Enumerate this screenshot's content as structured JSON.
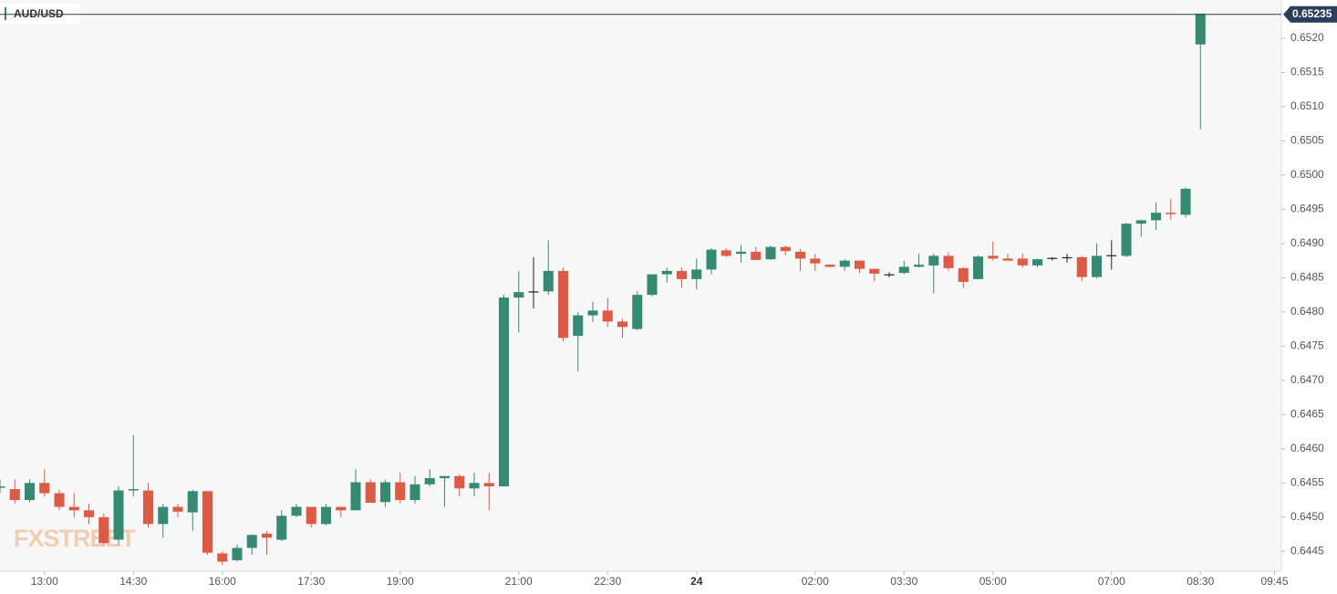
{
  "chart_data": {
    "type": "candlestick",
    "title": "AUD/USD",
    "watermark": "FXSTREET",
    "x": [
      -0.75,
      -0.5,
      -0.25,
      0,
      0.25,
      0.5,
      0.75,
      1,
      1.25,
      1.5,
      1.75,
      2,
      2.25,
      2.5,
      2.75,
      3,
      3.25,
      3.5,
      3.75,
      4,
      4.25,
      4.5,
      4.75,
      5,
      5.25,
      5.5,
      5.75,
      6,
      6.25,
      6.5,
      6.75,
      7,
      7.25,
      7.5,
      7.75,
      8,
      8.25,
      8.5,
      8.75,
      9,
      9.25,
      9.5,
      9.75,
      10,
      10.25,
      10.5,
      10.75,
      11,
      11.25,
      11.5,
      11.75,
      12,
      12.25,
      12.5,
      12.75,
      13,
      13.25,
      13.5,
      13.75,
      14,
      14.25,
      14.5,
      14.75,
      15,
      15.25,
      15.5,
      15.75,
      16,
      16.25,
      16.5,
      16.75,
      17,
      17.25,
      17.5,
      17.75,
      18,
      18.25,
      18.5,
      18.75,
      19,
      19.25,
      19.5
    ],
    "open": [
      0.64543,
      0.64541,
      0.64525,
      0.6455,
      0.64535,
      0.64515,
      0.6451,
      0.645,
      0.64467,
      0.64539,
      0.64539,
      0.6449,
      0.64515,
      0.64507,
      0.64538,
      0.64447,
      0.64437,
      0.64455,
      0.64476,
      0.64467,
      0.64502,
      0.64515,
      0.6449,
      0.64515,
      0.6451,
      0.64551,
      0.64522,
      0.64551,
      0.64525,
      0.64548,
      0.64557,
      0.6456,
      0.64542,
      0.6455,
      0.64545,
      0.64821,
      0.6483,
      0.6483,
      0.6486,
      0.64765,
      0.64795,
      0.64802,
      0.64786,
      0.64775,
      0.64825,
      0.64855,
      0.6486,
      0.64848,
      0.64862,
      0.6489,
      0.64885,
      0.64888,
      0.64877,
      0.64895,
      0.64888,
      0.64878,
      0.64869,
      0.64866,
      0.64875,
      0.64863,
      0.64855,
      0.64857,
      0.64866,
      0.64868,
      0.64882,
      0.64864,
      0.64848,
      0.64882,
      0.64878,
      0.64878,
      0.64868,
      0.64879,
      0.6488,
      0.6488,
      0.64851,
      0.64883,
      0.64882,
      0.64929,
      0.64934,
      0.64945,
      0.64942,
      0.65191
    ],
    "high": [
      0.64555,
      0.64555,
      0.64555,
      0.6457,
      0.6454,
      0.64535,
      0.6452,
      0.64505,
      0.64545,
      0.6462,
      0.6455,
      0.6452,
      0.6452,
      0.6454,
      0.64538,
      0.6445,
      0.6446,
      0.64475,
      0.6448,
      0.6451,
      0.6452,
      0.64515,
      0.6452,
      0.64515,
      0.6457,
      0.64555,
      0.64555,
      0.64565,
      0.6456,
      0.6457,
      0.6456,
      0.64563,
      0.64565,
      0.64565,
      0.64825,
      0.6486,
      0.6488,
      0.64905,
      0.64865,
      0.648,
      0.64815,
      0.6482,
      0.6479,
      0.6483,
      0.64855,
      0.64865,
      0.64865,
      0.64878,
      0.64893,
      0.64893,
      0.64898,
      0.64895,
      0.64897,
      0.64897,
      0.64892,
      0.64885,
      0.6487,
      0.64877,
      0.64875,
      0.64863,
      0.64858,
      0.64875,
      0.64885,
      0.64885,
      0.64887,
      0.64866,
      0.64883,
      0.64903,
      0.64885,
      0.64885,
      0.64878,
      0.6488,
      0.64885,
      0.64882,
      0.649,
      0.64905,
      0.6493,
      0.64935,
      0.6496,
      0.64965,
      0.64982,
      0.65236
    ],
    "low": [
      0.64535,
      0.6452,
      0.64522,
      0.6453,
      0.6451,
      0.645,
      0.6449,
      0.6446,
      0.6446,
      0.6453,
      0.64485,
      0.6447,
      0.645,
      0.6448,
      0.64445,
      0.6443,
      0.64435,
      0.64445,
      0.64445,
      0.64465,
      0.645,
      0.64485,
      0.64488,
      0.645,
      0.6451,
      0.64521,
      0.64515,
      0.6452,
      0.6452,
      0.64545,
      0.64515,
      0.6453,
      0.6453,
      0.6451,
      0.64545,
      0.6477,
      0.64805,
      0.64825,
      0.64757,
      0.64713,
      0.64785,
      0.64778,
      0.64762,
      0.64773,
      0.64823,
      0.64843,
      0.64835,
      0.64833,
      0.64855,
      0.6488,
      0.64872,
      0.64876,
      0.64876,
      0.64883,
      0.6486,
      0.6486,
      0.64865,
      0.6486,
      0.64857,
      0.64845,
      0.64851,
      0.64855,
      0.64865,
      0.64827,
      0.6486,
      0.64835,
      0.64848,
      0.64875,
      0.64875,
      0.64865,
      0.64865,
      0.64875,
      0.64872,
      0.64845,
      0.64849,
      0.64862,
      0.6488,
      0.6491,
      0.6492,
      0.64935,
      0.64938,
      0.65067
    ],
    "close": [
      0.64545,
      0.64525,
      0.6455,
      0.64535,
      0.64515,
      0.6451,
      0.645,
      0.64462,
      0.64539,
      0.64541,
      0.6449,
      0.64515,
      0.64508,
      0.64538,
      0.64448,
      0.64435,
      0.64455,
      0.64474,
      0.6447,
      0.64502,
      0.64515,
      0.6449,
      0.64515,
      0.6451,
      0.64551,
      0.64521,
      0.64551,
      0.64525,
      0.64548,
      0.64557,
      0.6456,
      0.64542,
      0.6455,
      0.64545,
      0.64821,
      0.64829,
      0.6483,
      0.6486,
      0.64762,
      0.64795,
      0.64802,
      0.64786,
      0.64778,
      0.64825,
      0.64855,
      0.6486,
      0.64848,
      0.64862,
      0.64891,
      0.64882,
      0.64888,
      0.64876,
      0.64895,
      0.64889,
      0.64878,
      0.64871,
      0.64866,
      0.64875,
      0.64863,
      0.64856,
      0.64855,
      0.64866,
      0.64869,
      0.64882,
      0.64864,
      0.64844,
      0.64881,
      0.64878,
      0.64875,
      0.64868,
      0.64877,
      0.64879,
      0.6488,
      0.64851,
      0.64882,
      0.64883,
      0.64929,
      0.64934,
      0.64945,
      0.64943,
      0.6498,
      0.65236
    ],
    "up_color": "#358a73",
    "down_color": "#df5a45",
    "flat_color": "#222222",
    "last_price": 0.65235,
    "xlim": [
      -0.75,
      20.865
    ],
    "ylim": [
      0.64421,
      0.65256
    ],
    "xticks": [
      {
        "value": 0,
        "label": "13:00"
      },
      {
        "value": 1.5,
        "label": "14:30"
      },
      {
        "value": 3,
        "label": "16:00"
      },
      {
        "value": 4.5,
        "label": "17:30"
      },
      {
        "value": 6,
        "label": "19:00"
      },
      {
        "value": 8,
        "label": "21:00"
      },
      {
        "value": 9.5,
        "label": "22:30"
      },
      {
        "value": 11,
        "label": "24"
      },
      {
        "value": 13,
        "label": "02:00"
      },
      {
        "value": 14.5,
        "label": "03:30"
      },
      {
        "value": 16,
        "label": "05:00"
      },
      {
        "value": 18,
        "label": "07:00"
      },
      {
        "value": 19.5,
        "label": "08:30"
      },
      {
        "value": 20.75,
        "label": "09:45"
      }
    ],
    "yticks": [
      0.6445,
      {
        "value": 0.645,
        "label": "0.6450"
      },
      0.6455,
      {
        "value": 0.646,
        "label": "0.6460"
      },
      0.6465,
      {
        "value": 0.647,
        "label": "0.6470"
      },
      0.6475,
      {
        "value": 0.648,
        "label": "0.6480"
      },
      0.6485,
      {
        "value": 0.649,
        "label": "0.6490"
      },
      0.6495,
      {
        "value": 0.65,
        "label": "0.6500"
      },
      0.6505,
      {
        "value": 0.651,
        "label": "0.6510"
      },
      0.6515,
      {
        "value": 0.652,
        "label": "0.6520"
      }
    ]
  }
}
